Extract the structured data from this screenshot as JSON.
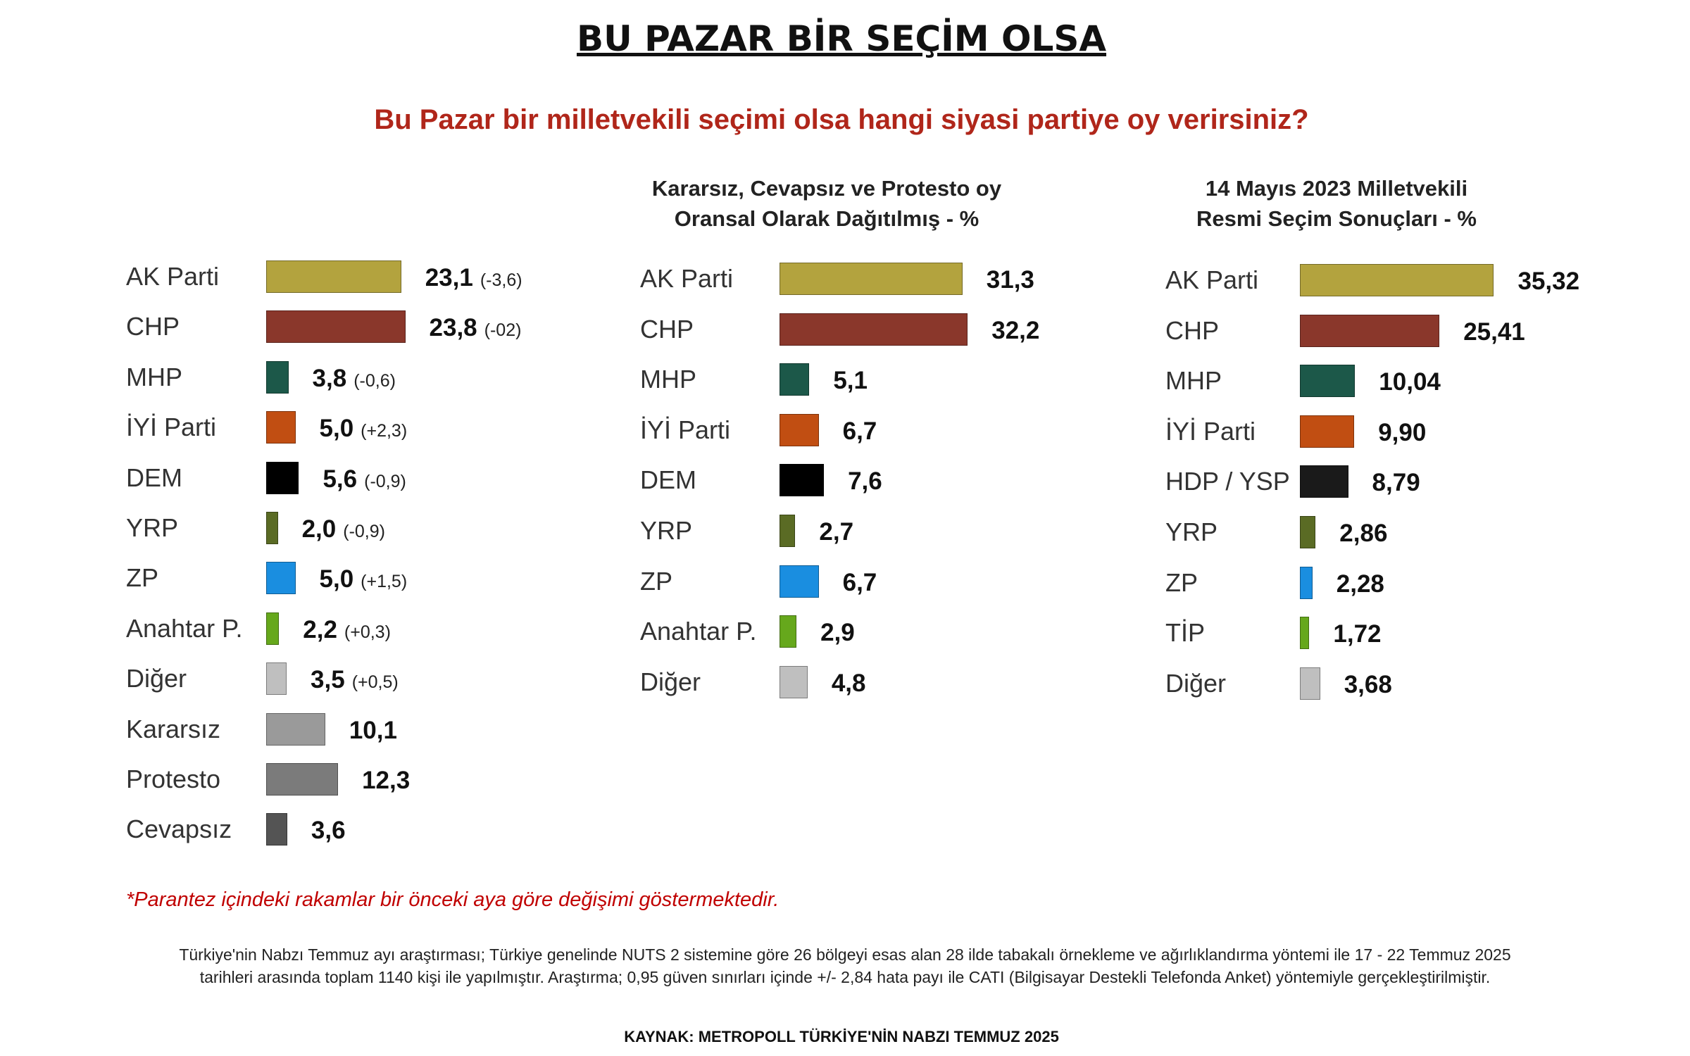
{
  "title": "BU PAZAR BİR SEÇİM OLSA",
  "question": "Bu Pazar bir milletvekili seçimi olsa hangi siyasi partiye oy verirsiniz?",
  "colors": {
    "AK Parti": "#b3a33e",
    "CHP": "#8a372b",
    "MHP": "#1c5849",
    "İYİ Parti": "#c14e12",
    "DEM": "#000000",
    "HDP / YSP": "#1a1a1a",
    "YRP": "#5a6b24",
    "ZP": "#1a8ee0",
    "Anahtar P.": "#66a81c",
    "TİP": "#66a81c",
    "Diğer": "#bfbfbf",
    "Kararsız": "#9a9a9a",
    "Protesto": "#7b7b7b",
    "Cevapsız": "#545454"
  },
  "chart_data": [
    {
      "type": "bar",
      "orientation": "horizontal",
      "title": "",
      "unit": "%",
      "categories": [
        "AK Parti",
        "CHP",
        "MHP",
        "İYİ Parti",
        "DEM",
        "YRP",
        "ZP",
        "Anahtar P.",
        "Diğer",
        "Kararsız",
        "Protesto",
        "Cevapsız"
      ],
      "values": [
        23.1,
        23.8,
        3.8,
        5.0,
        5.6,
        2.0,
        5.0,
        2.2,
        3.5,
        10.1,
        12.3,
        3.6
      ],
      "value_labels": [
        "23,1",
        "23,8",
        "3,8",
        "5,0",
        "5,6",
        "2,0",
        "5,0",
        "2,2",
        "3,5",
        "10,1",
        "12,3",
        "3,6"
      ],
      "change_labels": [
        "(-3,6)",
        "(-02)",
        "(-0,6)",
        "(+2,3)",
        "(-0,9)",
        "(-0,9)",
        "(+1,5)",
        "(+0,3)",
        "(+0,5)",
        "",
        "",
        ""
      ]
    },
    {
      "type": "bar",
      "orientation": "horizontal",
      "title": "Kararsız, Cevapsız ve Protesto oy\nOransal Olarak Dağıtılmış - %",
      "title_lines": [
        "Kararsız, Cevapsız ve Protesto oy",
        "Oransal Olarak Dağıtılmış - %"
      ],
      "unit": "%",
      "categories": [
        "AK Parti",
        "CHP",
        "MHP",
        "İYİ Parti",
        "DEM",
        "YRP",
        "ZP",
        "Anahtar P.",
        "Diğer"
      ],
      "values": [
        31.3,
        32.2,
        5.1,
        6.7,
        7.6,
        2.7,
        6.7,
        2.9,
        4.8
      ],
      "value_labels": [
        "31,3",
        "32,2",
        "5,1",
        "6,7",
        "7,6",
        "2,7",
        "6,7",
        "2,9",
        "4,8"
      ]
    },
    {
      "type": "bar",
      "orientation": "horizontal",
      "title": "14 Mayıs 2023 Milletvekili\nResmi Seçim Sonuçları - %",
      "title_lines": [
        "14 Mayıs 2023 Milletvekili",
        "Resmi Seçim Sonuçları - %"
      ],
      "unit": "%",
      "categories": [
        "AK Parti",
        "CHP",
        "MHP",
        "İYİ Parti",
        "HDP / YSP",
        "YRP",
        "ZP",
        "TİP",
        "Diğer"
      ],
      "values": [
        35.32,
        25.41,
        10.04,
        9.9,
        8.79,
        2.86,
        2.28,
        1.72,
        3.68
      ],
      "value_labels": [
        "35,32",
        "25,41",
        "10,04",
        "9,90",
        "8,79",
        "2,86",
        "2,28",
        "1,72",
        "3,68"
      ]
    }
  ],
  "footnote": "*Parantez içindeki rakamlar bir önceki aya göre değişimi göstermektedir.",
  "methodology": [
    "Türkiye'nin Nabzı Temmuz ayı araştırması; Türkiye genelinde NUTS 2 sistemine göre 26 bölgeyi esas alan 28 ilde tabakalı örnekleme ve ağırlıklandırma yöntemi ile 17 - 22 Temmuz 2025",
    "tarihleri arasında toplam 1140 kişi ile yapılmıştır. Araştırma; 0,95 güven sınırları içinde +/- 2,84 hata payı ile CATI (Bilgisayar Destekli Telefonda Anket) yöntemiyle gerçekleştirilmiştir."
  ],
  "source": "KAYNAK: METROPOLL TÜRKİYE'NİN NABZI TEMMUZ 2025"
}
